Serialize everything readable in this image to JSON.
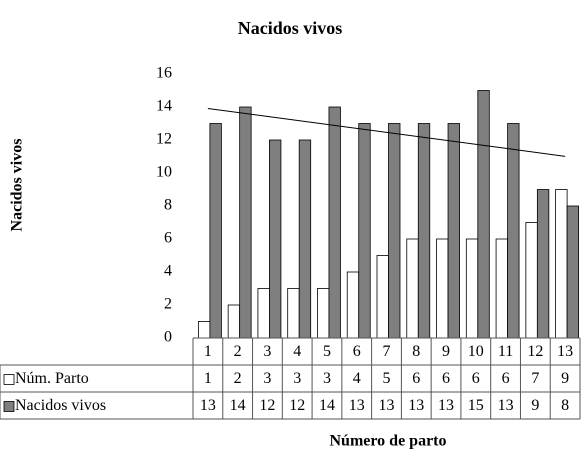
{
  "chart_data": {
    "type": "bar",
    "title": "Nacidos vivos",
    "y_label": "Nacidos vivos",
    "x_label": "Número de parto",
    "categories": [
      "1",
      "2",
      "3",
      "4",
      "5",
      "6",
      "7",
      "8",
      "9",
      "10",
      "11",
      "12",
      "13"
    ],
    "series": [
      {
        "name": "Núm. Parto",
        "color": "#ffffff",
        "values": [
          1,
          2,
          3,
          3,
          3,
          4,
          5,
          6,
          6,
          6,
          6,
          7,
          9
        ]
      },
      {
        "name": "Nacidos vivos",
        "color": "#7f7f7f",
        "values": [
          13,
          14,
          12,
          12,
          14,
          13,
          13,
          13,
          13,
          15,
          13,
          9,
          8
        ]
      }
    ],
    "ylim": [
      0,
      16
    ],
    "yticks": [
      0,
      2,
      4,
      6,
      8,
      10,
      12,
      14,
      16
    ],
    "grid": false,
    "trendline_series": 1
  }
}
